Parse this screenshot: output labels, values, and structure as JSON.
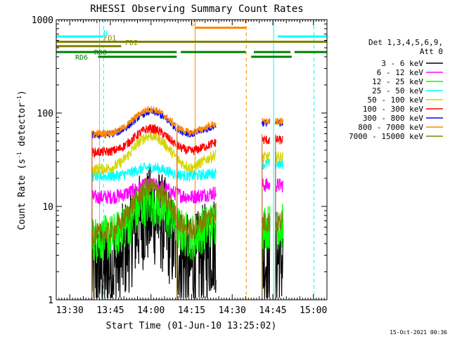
{
  "chart_data": {
    "type": "line",
    "title": "RHESSI Observing Summary Count Rates",
    "xlabel": "Start Time (01-Jun-10 13:25:02)",
    "ylabel_main": "Count Rate (s",
    "ylabel_sup1": "-1",
    "ylabel_mid": " detector",
    "ylabel_sup2": "-1",
    "ylabel_end": ")",
    "x_unit": "minutes since 13:25:02",
    "xlim": [
      0,
      100
    ],
    "ylim": [
      1,
      1000
    ],
    "yscale": "log",
    "x_ticks": [
      {
        "label": "13:30",
        "value": 5
      },
      {
        "label": "13:45",
        "value": 20
      },
      {
        "label": "14:00",
        "value": 35
      },
      {
        "label": "14:15",
        "value": 50
      },
      {
        "label": "14:30",
        "value": 65
      },
      {
        "label": "14:45",
        "value": 80
      },
      {
        "label": "15:00",
        "value": 95
      }
    ],
    "y_ticks": [
      {
        "label": "1",
        "value": 1
      },
      {
        "label": "10",
        "value": 10
      },
      {
        "label": "100",
        "value": 100
      },
      {
        "label": "1000",
        "value": 1000
      }
    ],
    "legend_header": [
      "Det 1,3,4,5,6,9,",
      "Att 0"
    ],
    "legend_position": "right",
    "series": [
      {
        "name": "3 - 6 keV",
        "color": "#000000",
        "base": 2.0,
        "peak": 6.0,
        "noise": 0.55
      },
      {
        "name": "6 - 12 keV",
        "color": "#ff00ff",
        "base": 12.5,
        "peak": 4.5,
        "noise": 0.08
      },
      {
        "name": "12 - 25 keV",
        "color": "#00ff00",
        "base": 4.5,
        "peak": 6.5,
        "noise": 0.25
      },
      {
        "name": "25 - 50 keV",
        "color": "#00ffff",
        "base": 21.0,
        "peak": 5.0,
        "noise": 0.06
      },
      {
        "name": "50 - 100 keV",
        "color": "#d4d400",
        "base": 25.0,
        "peak": 32.0,
        "noise": 0.06
      },
      {
        "name": "100 - 300 keV",
        "color": "#ff0000",
        "base": 38.0,
        "peak": 30.0,
        "noise": 0.05
      },
      {
        "name": "300 - 800 keV",
        "color": "#0000ff",
        "base": 58.0,
        "peak": 45.0,
        "noise": 0.04
      },
      {
        "name": "800 - 7000 keV",
        "color": "#ff8800",
        "base": 60.0,
        "peak": 50.0,
        "noise": 0.04
      },
      {
        "name": "7000 - 15000 keV",
        "color": "#808000",
        "base": 5.0,
        "peak": 11.0,
        "noise": 0.12
      }
    ],
    "data_segments": [
      {
        "start": 13.2,
        "end": 44.2
      },
      {
        "start": 44.6,
        "end": 59.0
      },
      {
        "start": 76.0,
        "end": 79.0
      },
      {
        "start": 81.0,
        "end": 83.8
      }
    ],
    "flag_bars": [
      {
        "label": "N",
        "color": "#00ffff",
        "segments": [
          [
            0,
            17.5
          ],
          [
            81.8,
            100
          ]
        ],
        "value": 660
      },
      {
        "label": "FD1",
        "color": "#808000",
        "segments": [
          [
            0,
            100
          ]
        ],
        "value": 580
      },
      {
        "label": "FD2",
        "color": "#808000",
        "segments": [
          [
            0,
            24
          ]
        ],
        "value": 520
      },
      {
        "label": "S",
        "color": "#ff8800",
        "segments": [
          [
            51.3,
            70.2
          ]
        ],
        "value": 820
      },
      {
        "label": "RD0",
        "color": "#008000",
        "segments": [
          [
            0,
            44.5
          ],
          [
            46,
            70
          ],
          [
            73,
            86.5
          ],
          [
            88,
            100
          ]
        ],
        "value": 450
      },
      {
        "label": "RD6",
        "color": "#008000",
        "segments": [
          [
            15.5,
            44.5
          ],
          [
            72,
            87
          ]
        ],
        "value": 400
      }
    ],
    "vertical_lines": [
      {
        "value": 16.0,
        "color": "#00ffff",
        "style": "solid"
      },
      {
        "value": 17.5,
        "color": "#00ffff",
        "style": "dashed"
      },
      {
        "value": 51.3,
        "color": "#ff8800",
        "style": "solid"
      },
      {
        "value": 70.2,
        "color": "#ff8800",
        "style": "dashed"
      },
      {
        "value": 80.3,
        "color": "#00ffff",
        "style": "solid"
      },
      {
        "value": 95.2,
        "color": "#00ffff",
        "style": "dashed"
      }
    ]
  },
  "footer": {
    "timestamp": "15-Oct-2021 00:36"
  }
}
